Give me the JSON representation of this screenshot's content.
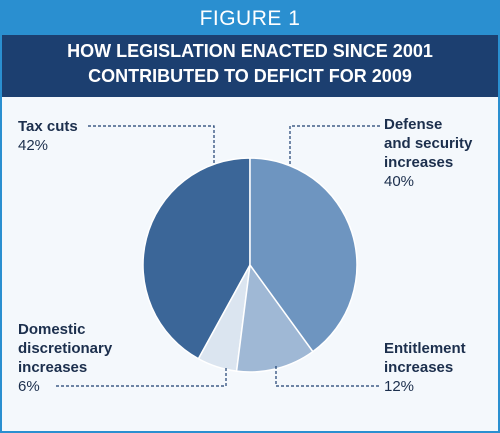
{
  "chart_data": {
    "type": "pie",
    "figure_label": "FIGURE 1",
    "title": "HOW LEGISLATION ENACTED SINCE 2001 CONTRIBUTED TO DEFICIT FOR 2009",
    "categories": [
      "Defense\nand security\nincreases",
      "Entitlement\nincreases",
      "Domestic\ndiscretionary\nincreases",
      "Tax cuts"
    ],
    "values": [
      40,
      12,
      6,
      42
    ],
    "value_labels": [
      "40%",
      "12%",
      "6%",
      "42%"
    ],
    "colors": [
      "#6e95c0",
      "#9fb8d5",
      "#dbe5f0",
      "#3b6698"
    ]
  }
}
